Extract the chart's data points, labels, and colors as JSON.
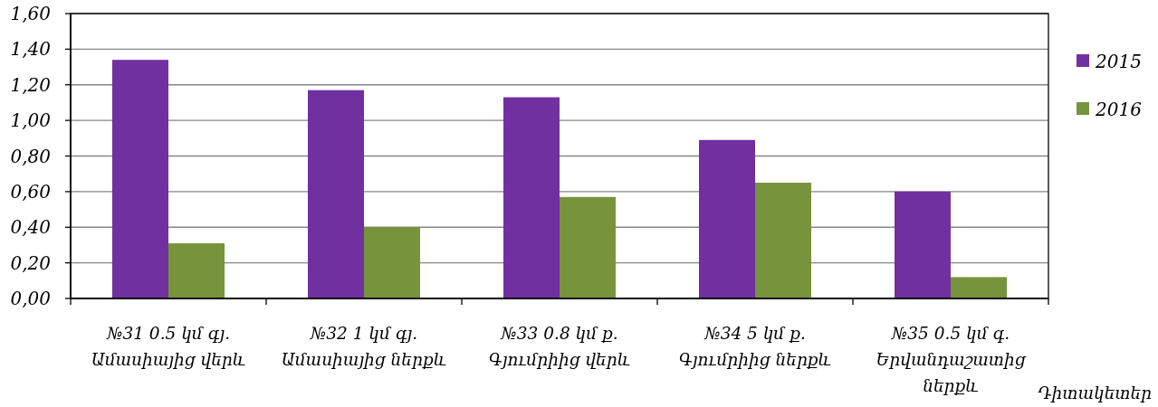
{
  "chart_data": {
    "type": "bar",
    "categories": [
      "№31 0.5 կմ գյ.\nԱմասիայից վերև",
      "№32 1 կմ գյ.\nԱմասիայից ներքև",
      "№33 0.8 կմ ք.\nԳյումրիից վերև",
      "№34 5 կմ ք.\nԳյումրիից ներքև",
      "№35 0.5 կմ գ.\nԵրվանդաշատից\nներքև"
    ],
    "series": [
      {
        "name": "2015",
        "color": "#7030a0",
        "values": [
          1.34,
          1.17,
          1.13,
          0.89,
          0.6
        ]
      },
      {
        "name": "2016",
        "color": "#77933c",
        "values": [
          0.31,
          0.4,
          0.57,
          0.65,
          0.12
        ]
      }
    ],
    "xlabel": "Դիտակետեր",
    "ylim": [
      0,
      1.6
    ],
    "yticks": [
      {
        "value": 0,
        "label": "0,00"
      },
      {
        "value": 0.2,
        "label": "0,20"
      },
      {
        "value": 0.4,
        "label": "0,40"
      },
      {
        "value": 0.6,
        "label": "0,60"
      },
      {
        "value": 0.8,
        "label": "0,80"
      },
      {
        "value": 1.0,
        "label": "1,00"
      },
      {
        "value": 1.2,
        "label": "1,20"
      },
      {
        "value": 1.4,
        "label": "1,40"
      },
      {
        "value": 1.6,
        "label": "1,60"
      }
    ],
    "grid": "y",
    "legend": "right"
  }
}
